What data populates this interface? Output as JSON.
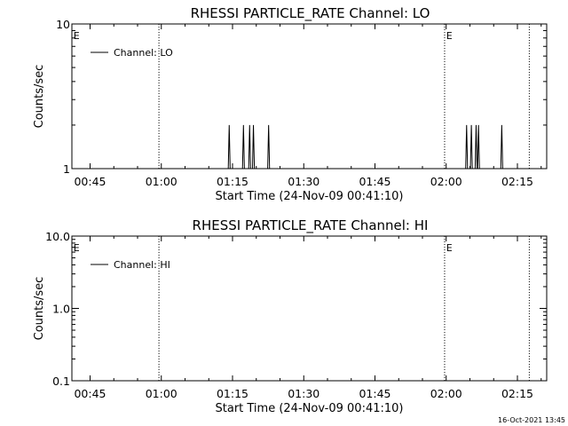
{
  "chart_data": [
    {
      "type": "line",
      "title": "RHESSI PARTICLE_RATE Channel: LO",
      "xlabel": "Start Time (24-Nov-09 00:41:10)",
      "ylabel": "Counts/sec",
      "x_ticks": [
        "00:45",
        "01:00",
        "01:15",
        "01:30",
        "01:45",
        "02:00",
        "02:15"
      ],
      "y_scale": "log",
      "y_ticks": [
        "1",
        "10"
      ],
      "ylim": [
        1,
        10
      ],
      "xlim": [
        "00:41:10",
        "02:21:10"
      ],
      "legend_position": "top-left",
      "series": [
        {
          "name": "Channel: LO",
          "points": [
            [
              "01:14:06",
              1
            ],
            [
              "01:14:18",
              2
            ],
            [
              "01:14:30",
              1
            ],
            [
              "01:17:06",
              1
            ],
            [
              "01:17:18",
              2
            ],
            [
              "01:17:30",
              1
            ],
            [
              "01:18:24",
              1
            ],
            [
              "01:18:36",
              2
            ],
            [
              "01:18:48",
              1
            ],
            [
              "01:19:12",
              1
            ],
            [
              "01:19:24",
              2
            ],
            [
              "01:19:36",
              1
            ],
            [
              "01:22:24",
              1
            ],
            [
              "01:22:36",
              2
            ],
            [
              "01:22:48",
              1
            ],
            [
              "02:04:06",
              1
            ],
            [
              "02:04:18",
              2
            ],
            [
              "02:04:30",
              1
            ],
            [
              "02:05:06",
              1
            ],
            [
              "02:05:18",
              2
            ],
            [
              "02:05:30",
              1
            ],
            [
              "02:06:06",
              1
            ],
            [
              "02:06:18",
              2
            ],
            [
              "02:06:30",
              1
            ],
            [
              "02:06:36",
              1
            ],
            [
              "02:06:48",
              2
            ],
            [
              "02:07:00",
              1
            ],
            [
              "02:11:30",
              1
            ],
            [
              "02:11:42",
              2
            ],
            [
              "02:11:54",
              1
            ]
          ]
        }
      ],
      "vlines": [
        "00:59:30",
        "01:59:40",
        "02:17:30"
      ],
      "markers": [
        {
          "text": "E",
          "x": "00:41:30"
        },
        {
          "text": "E",
          "x": "02:00:00"
        }
      ]
    },
    {
      "type": "line",
      "title": "RHESSI PARTICLE_RATE Channel: HI",
      "xlabel": "Start Time (24-Nov-09 00:41:10)",
      "ylabel": "Counts/sec",
      "x_ticks": [
        "00:45",
        "01:00",
        "01:15",
        "01:30",
        "01:45",
        "02:00",
        "02:15"
      ],
      "y_scale": "log",
      "y_ticks": [
        "0.1",
        "1.0",
        "10.0"
      ],
      "ylim": [
        0.1,
        10
      ],
      "xlim": [
        "00:41:10",
        "02:21:10"
      ],
      "legend_position": "top-left",
      "series": [
        {
          "name": "Channel: HI",
          "points": []
        }
      ],
      "vlines": [
        "00:59:30",
        "01:59:40",
        "02:17:30"
      ],
      "markers": [
        {
          "text": "E",
          "x": "00:41:30"
        },
        {
          "text": "E",
          "x": "02:00:00"
        }
      ]
    }
  ],
  "footer": {
    "timestamp": "16-Oct-2021 13:45"
  }
}
